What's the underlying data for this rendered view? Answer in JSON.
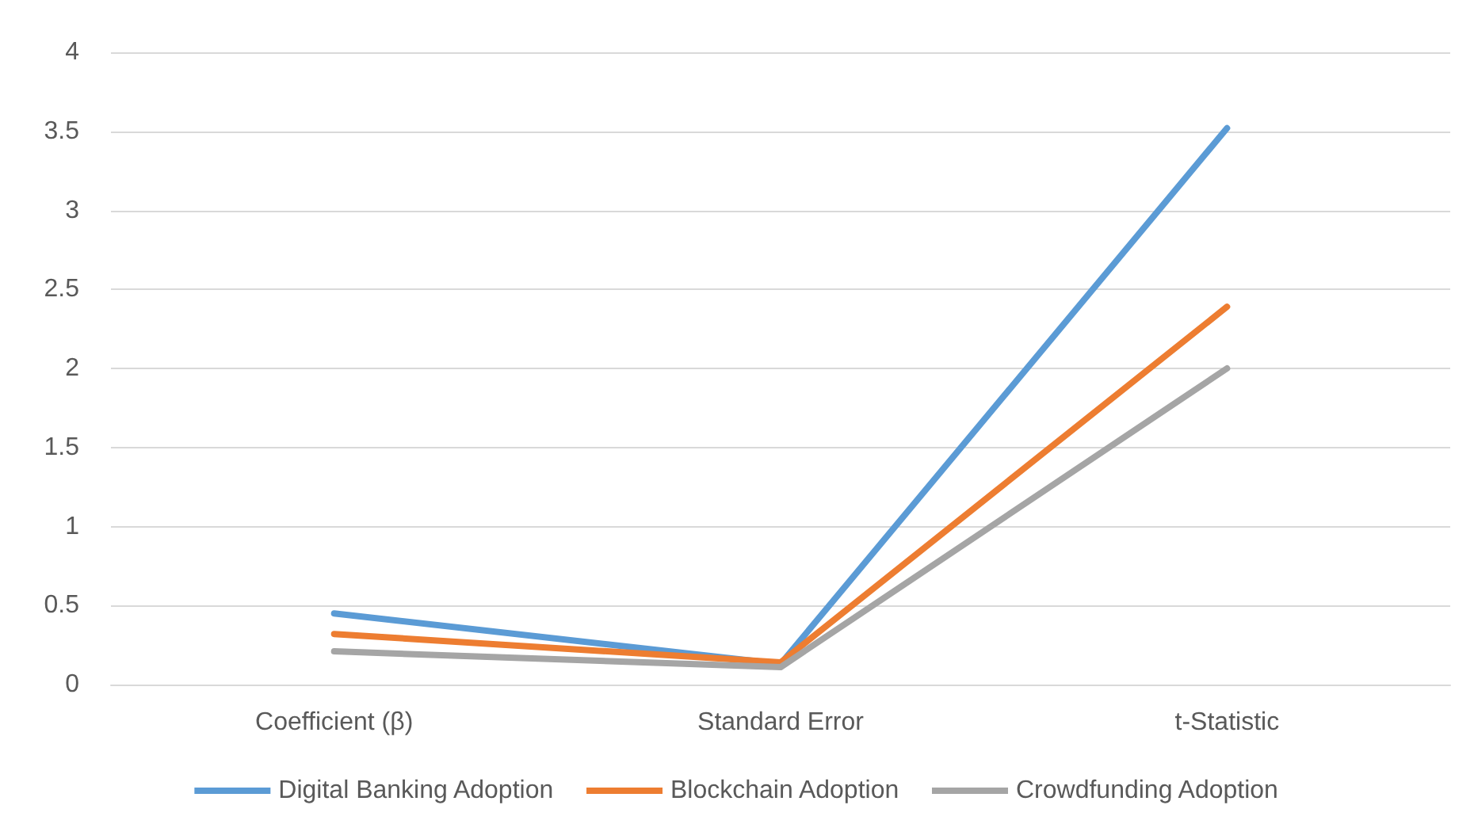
{
  "chart_data": {
    "type": "line",
    "categories": [
      "Coefficient (β)",
      "Standard Error",
      "t-Statistic"
    ],
    "series": [
      {
        "name": "Digital Banking Adoption",
        "color": "#5b9bd5",
        "values": [
          0.45,
          0.13,
          3.52
        ]
      },
      {
        "name": "Blockchain Adoption",
        "color": "#ed7d31",
        "values": [
          0.32,
          0.14,
          2.39
        ]
      },
      {
        "name": "Crowdfunding Adoption",
        "color": "#a5a5a5",
        "values": [
          0.21,
          0.11,
          2.0
        ]
      }
    ],
    "ylim": [
      0,
      4
    ],
    "yticks": [
      0,
      0.5,
      1,
      1.5,
      2,
      2.5,
      3,
      3.5,
      4
    ],
    "grid": "y",
    "legend": "bottom",
    "marker": "none",
    "line_style": "solid"
  }
}
